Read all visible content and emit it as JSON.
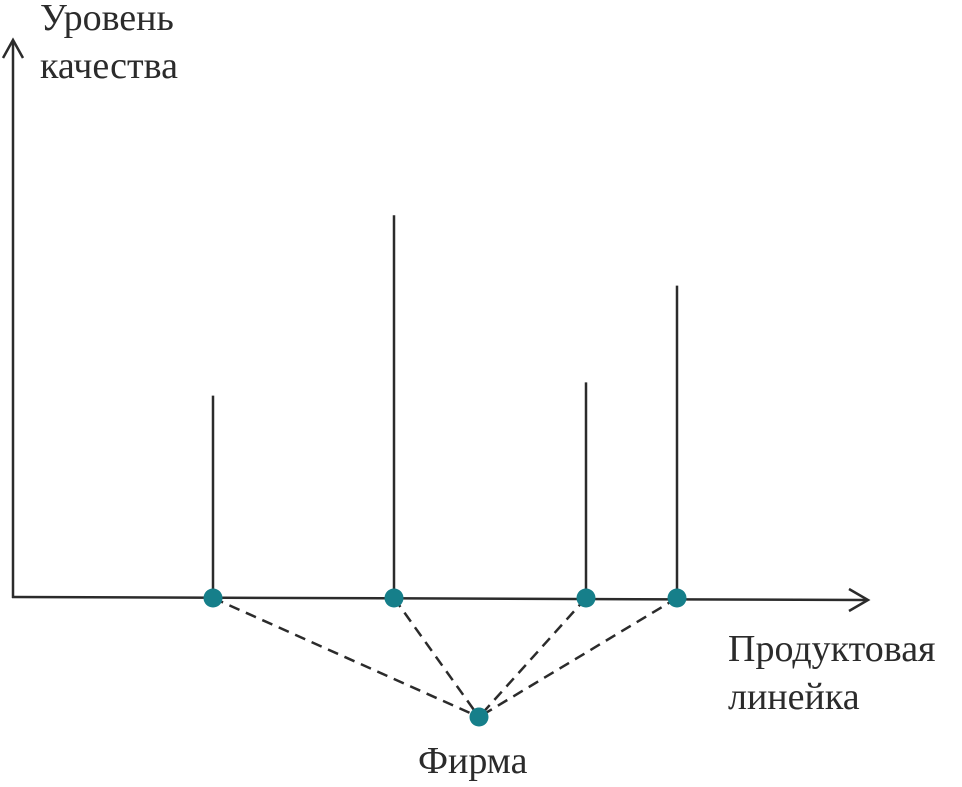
{
  "y_axis": {
    "label_lines": [
      "Уровень",
      "качества"
    ]
  },
  "x_axis": {
    "label_lines": [
      "Продуктовая",
      "линейка"
    ]
  },
  "firm": {
    "label": "Фирма"
  },
  "products": [
    {
      "quality": 0.46
    },
    {
      "quality": 0.87
    },
    {
      "quality": 0.49
    },
    {
      "quality": 0.71
    }
  ],
  "colors": {
    "line": "#2b2b2b",
    "node": "#167f8a"
  }
}
